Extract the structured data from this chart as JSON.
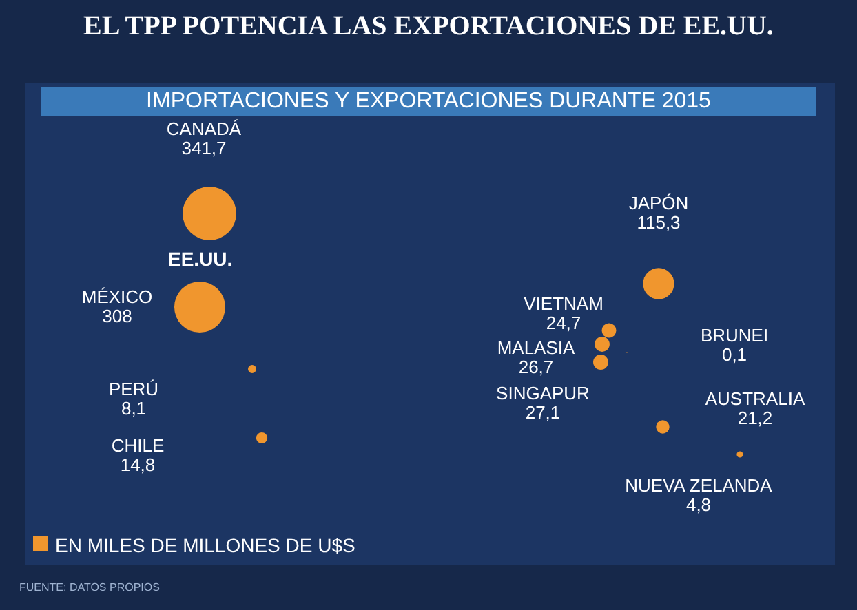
{
  "chart_data": {
    "type": "other",
    "title": "EL TPP POTENCIA LAS EXPORTACIONES DE EE.UU.",
    "subtitle": "IMPORTACIONES Y EXPORTACIONES DURANTE 2015",
    "categories": [
      "CANADÁ",
      "MÉXICO",
      "PERÚ",
      "CHILE",
      "JAPÓN",
      "VIETNAM",
      "MALASIA",
      "BRUNEI",
      "SINGAPUR",
      "AUSTRALIA",
      "NUEVA ZELANDA"
    ],
    "values": [
      341.7,
      308,
      8.1,
      14.8,
      115.3,
      24.7,
      26.7,
      0.1,
      27.1,
      21.2,
      4.8
    ],
    "value_labels": [
      "341,7",
      "308",
      "8,1",
      "14,8",
      "115,3",
      "24,7",
      "26,7",
      "0,1",
      "27,1",
      "21,2",
      "4,8"
    ],
    "color": "#f0962e",
    "annotations": [
      "EE.UU.",
      "EN MILES DE MILLONES DE U$S",
      "FUENTE: DATOS PROPIOS"
    ]
  }
}
